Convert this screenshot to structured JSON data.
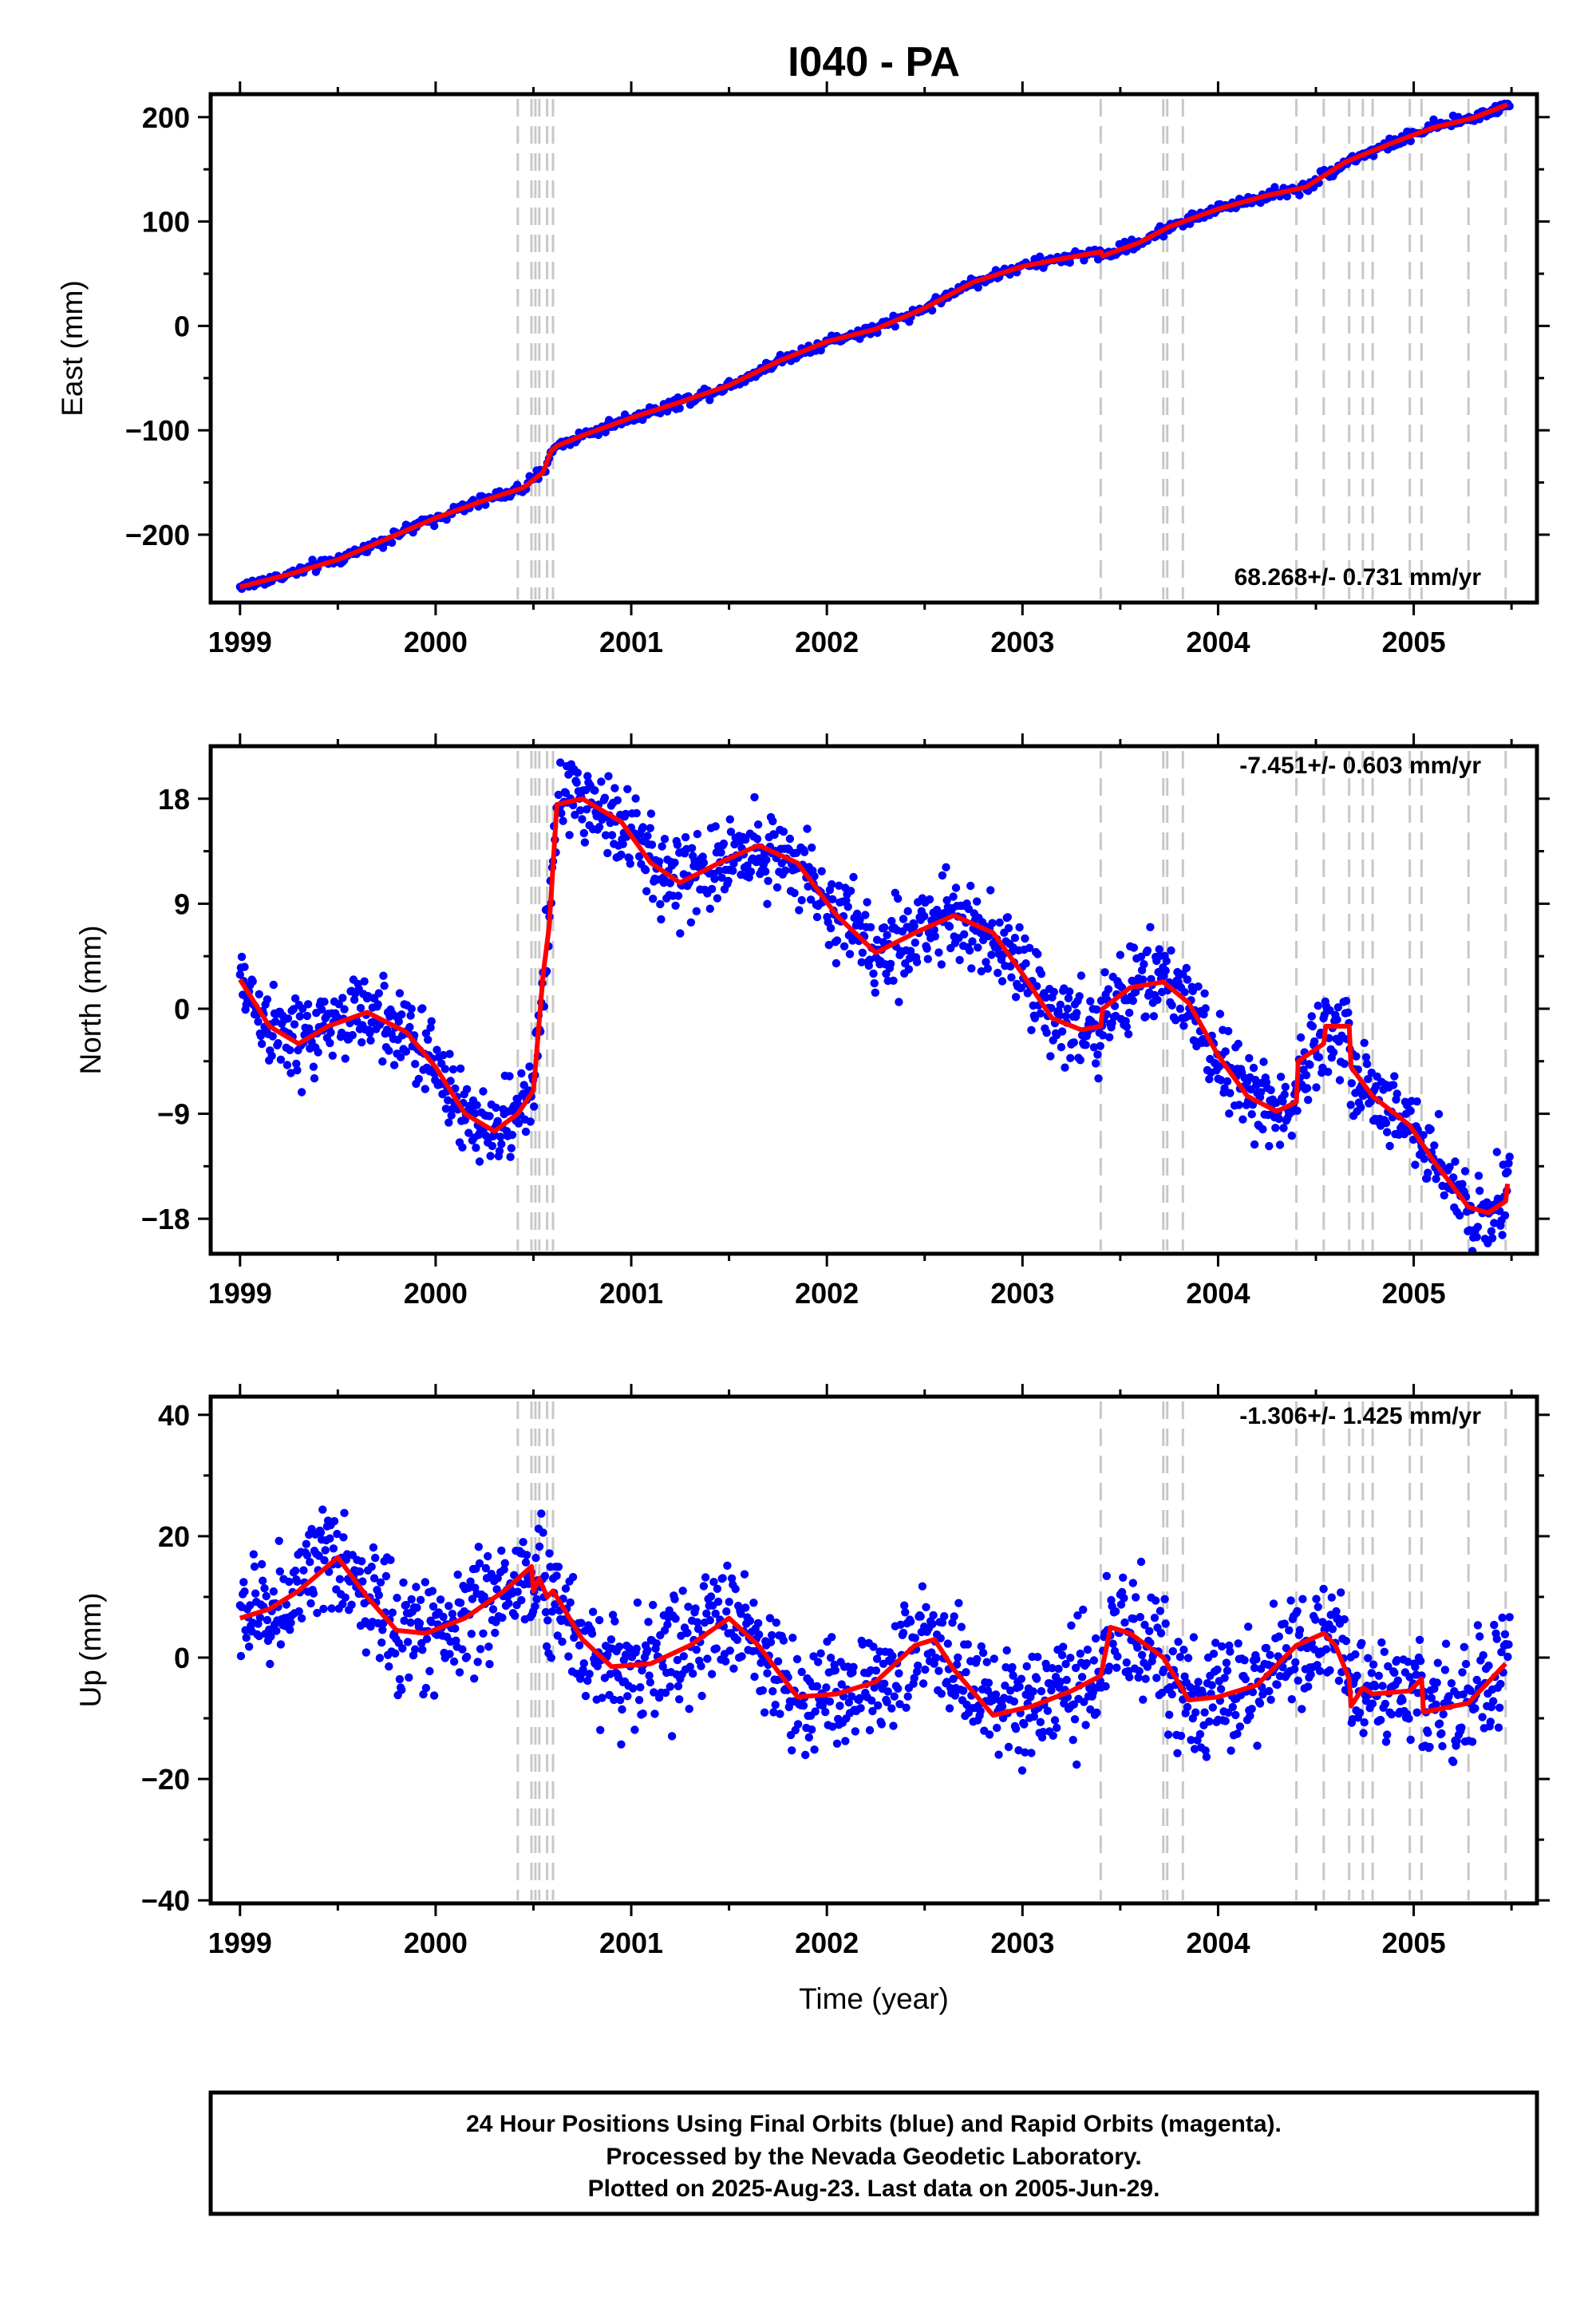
{
  "title": "I040 - PA",
  "xlabel": "Time (year)",
  "footer": {
    "line1": "24 Hour Positions Using Final Orbits (blue) and Rapid Orbits (magenta).",
    "line2": "Processed by the Nevada Geodetic Laboratory.",
    "line3": "Plotted on 2025-Aug-23. Last data on 2005-Jun-29."
  },
  "colors": {
    "data": "#0000ff",
    "model": "#ff0000",
    "event_line": "#c8c8c8",
    "frame": "#000000"
  },
  "chart_data": [
    {
      "type": "scatter",
      "component": "east",
      "ylabel": "East (mm)",
      "rate_text": "68.268+/- 0.731 mm/yr",
      "xlim": [
        1998.85,
        2005.63
      ],
      "ylim": [
        -265,
        222
      ],
      "xticks": [
        1999,
        2000,
        2001,
        2002,
        2003,
        2004,
        2005
      ],
      "yticks": [
        -200,
        -100,
        0,
        100,
        200
      ],
      "ytick_labels": [
        "−200",
        "−100",
        "0",
        "100",
        "200"
      ],
      "event_lines": [
        2000.42,
        2000.49,
        2000.51,
        2000.53,
        2000.57,
        2000.6,
        2003.4,
        2003.72,
        2003.74,
        2003.82,
        2004.4,
        2004.54,
        2004.67,
        2004.74,
        2004.79,
        2004.98,
        2005.04,
        2005.28,
        2005.47
      ],
      "model": [
        [
          1999.0,
          -250
        ],
        [
          1999.25,
          -238
        ],
        [
          1999.5,
          -224
        ],
        [
          1999.75,
          -204
        ],
        [
          2000.0,
          -184
        ],
        [
          2000.25,
          -167
        ],
        [
          2000.45,
          -155
        ],
        [
          2000.55,
          -140
        ],
        [
          2000.59,
          -120
        ],
        [
          2000.62,
          -115
        ],
        [
          2000.75,
          -105
        ],
        [
          2001.0,
          -88
        ],
        [
          2001.25,
          -73
        ],
        [
          2001.5,
          -57
        ],
        [
          2001.75,
          -34
        ],
        [
          2002.0,
          -15
        ],
        [
          2002.25,
          -3
        ],
        [
          2002.5,
          17
        ],
        [
          2002.75,
          42
        ],
        [
          2003.0,
          57
        ],
        [
          2003.25,
          66
        ],
        [
          2003.4,
          71
        ],
        [
          2003.41,
          67
        ],
        [
          2003.6,
          80
        ],
        [
          2003.75,
          95
        ],
        [
          2004.0,
          112
        ],
        [
          2004.25,
          125
        ],
        [
          2004.45,
          133
        ],
        [
          2004.65,
          157
        ],
        [
          2004.9,
          176
        ],
        [
          2005.1,
          190
        ],
        [
          2005.3,
          199
        ],
        [
          2005.48,
          212
        ]
      ],
      "scatter": {
        "t0": 1999.0,
        "t1": 2005.49,
        "n": 720,
        "noise": 2.8
      }
    },
    {
      "type": "scatter",
      "component": "north",
      "ylabel": "North (mm)",
      "rate_text": "-7.451+/- 0.603 mm/yr",
      "xlim": [
        1998.85,
        2005.63
      ],
      "ylim": [
        -21,
        22.5
      ],
      "xticks": [
        1999,
        2000,
        2001,
        2002,
        2003,
        2004,
        2005
      ],
      "yticks": [
        -18,
        -9,
        0,
        9,
        18
      ],
      "ytick_labels": [
        "−18",
        "−9",
        "0",
        "9",
        "18"
      ],
      "event_lines": [
        2000.42,
        2000.49,
        2000.51,
        2000.53,
        2000.57,
        2000.6,
        2003.4,
        2003.72,
        2003.74,
        2003.82,
        2004.4,
        2004.54,
        2004.67,
        2004.74,
        2004.79,
        2004.98,
        2005.04,
        2005.28,
        2005.47
      ],
      "model": [
        [
          1999.0,
          2.5
        ],
        [
          1999.15,
          -1.5
        ],
        [
          1999.3,
          -3.0
        ],
        [
          1999.45,
          -1.5
        ],
        [
          1999.65,
          -0.3
        ],
        [
          1999.85,
          -2.0
        ],
        [
          2000.0,
          -5.0
        ],
        [
          2000.15,
          -9.0
        ],
        [
          2000.3,
          -10.5
        ],
        [
          2000.42,
          -9.0
        ],
        [
          2000.5,
          -7.0
        ],
        [
          2000.55,
          3.0
        ],
        [
          2000.58,
          7.0
        ],
        [
          2000.62,
          17.5
        ],
        [
          2000.75,
          18.0
        ],
        [
          2000.95,
          16.0
        ],
        [
          2001.1,
          12.5
        ],
        [
          2001.25,
          10.8
        ],
        [
          2001.45,
          12.5
        ],
        [
          2001.65,
          14.0
        ],
        [
          2001.85,
          12.5
        ],
        [
          2002.05,
          8.0
        ],
        [
          2002.25,
          4.8
        ],
        [
          2002.45,
          6.5
        ],
        [
          2002.65,
          8.0
        ],
        [
          2002.85,
          6.5
        ],
        [
          2003.0,
          3.0
        ],
        [
          2003.15,
          -0.8
        ],
        [
          2003.3,
          -1.8
        ],
        [
          2003.4,
          -1.5
        ],
        [
          2003.41,
          0.0
        ],
        [
          2003.55,
          1.8
        ],
        [
          2003.72,
          2.3
        ],
        [
          2003.85,
          0.5
        ],
        [
          2004.0,
          -4.0
        ],
        [
          2004.15,
          -7.5
        ],
        [
          2004.3,
          -8.8
        ],
        [
          2004.4,
          -8.0
        ],
        [
          2004.41,
          -4.5
        ],
        [
          2004.54,
          -3.0
        ],
        [
          2004.55,
          -1.5
        ],
        [
          2004.67,
          -1.5
        ],
        [
          2004.68,
          -5.0
        ],
        [
          2004.79,
          -7.5
        ],
        [
          2004.98,
          -10.0
        ],
        [
          2005.1,
          -13.0
        ],
        [
          2005.28,
          -17.0
        ],
        [
          2005.38,
          -17.5
        ],
        [
          2005.47,
          -16.5
        ],
        [
          2005.48,
          -15.0
        ]
      ],
      "scatter": {
        "t0": 1999.0,
        "t1": 2005.49,
        "n": 1400,
        "noise": 1.8
      }
    },
    {
      "type": "scatter",
      "component": "up",
      "ylabel": "Up (mm)",
      "rate_text": "-1.306+/- 1.425 mm/yr",
      "xlim": [
        1998.85,
        2005.63
      ],
      "ylim": [
        -40.5,
        43
      ],
      "xticks": [
        1999,
        2000,
        2001,
        2002,
        2003,
        2004,
        2005
      ],
      "yticks": [
        -40,
        -20,
        0,
        20,
        40
      ],
      "ytick_labels": [
        "−40",
        "−20",
        "0",
        "20",
        "40"
      ],
      "event_lines": [
        2000.42,
        2000.49,
        2000.51,
        2000.53,
        2000.57,
        2000.6,
        2003.4,
        2003.72,
        2003.74,
        2003.82,
        2004.4,
        2004.54,
        2004.67,
        2004.74,
        2004.79,
        2004.98,
        2005.04,
        2005.28,
        2005.47
      ],
      "model": [
        [
          1999.0,
          6.5
        ],
        [
          1999.15,
          8.0
        ],
        [
          1999.3,
          11.0
        ],
        [
          1999.5,
          16.5
        ],
        [
          1999.65,
          10.0
        ],
        [
          1999.8,
          4.5
        ],
        [
          1999.95,
          4.0
        ],
        [
          2000.15,
          6.5
        ],
        [
          2000.35,
          11.0
        ],
        [
          2000.49,
          15.0
        ],
        [
          2000.5,
          11.0
        ],
        [
          2000.53,
          13.0
        ],
        [
          2000.57,
          10.0
        ],
        [
          2000.6,
          11.0
        ],
        [
          2000.75,
          3.0
        ],
        [
          2000.9,
          -1.5
        ],
        [
          2001.1,
          -1.0
        ],
        [
          2001.3,
          2.0
        ],
        [
          2001.5,
          6.5
        ],
        [
          2001.65,
          2.0
        ],
        [
          2001.85,
          -6.5
        ],
        [
          2002.05,
          -6.0
        ],
        [
          2002.25,
          -4.0
        ],
        [
          2002.45,
          2.0
        ],
        [
          2002.55,
          3.0
        ],
        [
          2002.65,
          -2.0
        ],
        [
          2002.85,
          -9.5
        ],
        [
          2003.05,
          -8.0
        ],
        [
          2003.25,
          -5.5
        ],
        [
          2003.4,
          -3.0
        ],
        [
          2003.45,
          5.0
        ],
        [
          2003.55,
          4.0
        ],
        [
          2003.72,
          0.0
        ],
        [
          2003.85,
          -7.0
        ],
        [
          2004.0,
          -6.5
        ],
        [
          2004.2,
          -4.5
        ],
        [
          2004.4,
          2.0
        ],
        [
          2004.54,
          4.0
        ],
        [
          2004.6,
          2.0
        ],
        [
          2004.67,
          -3.5
        ],
        [
          2004.68,
          -8.0
        ],
        [
          2004.74,
          -5.0
        ],
        [
          2004.79,
          -6.0
        ],
        [
          2004.98,
          -5.5
        ],
        [
          2005.04,
          -3.5
        ],
        [
          2005.05,
          -9.0
        ],
        [
          2005.28,
          -7.5
        ],
        [
          2005.47,
          -1.0
        ]
      ],
      "scatter": {
        "t0": 1999.0,
        "t1": 2005.49,
        "n": 1400,
        "noise": 4.8
      }
    }
  ]
}
